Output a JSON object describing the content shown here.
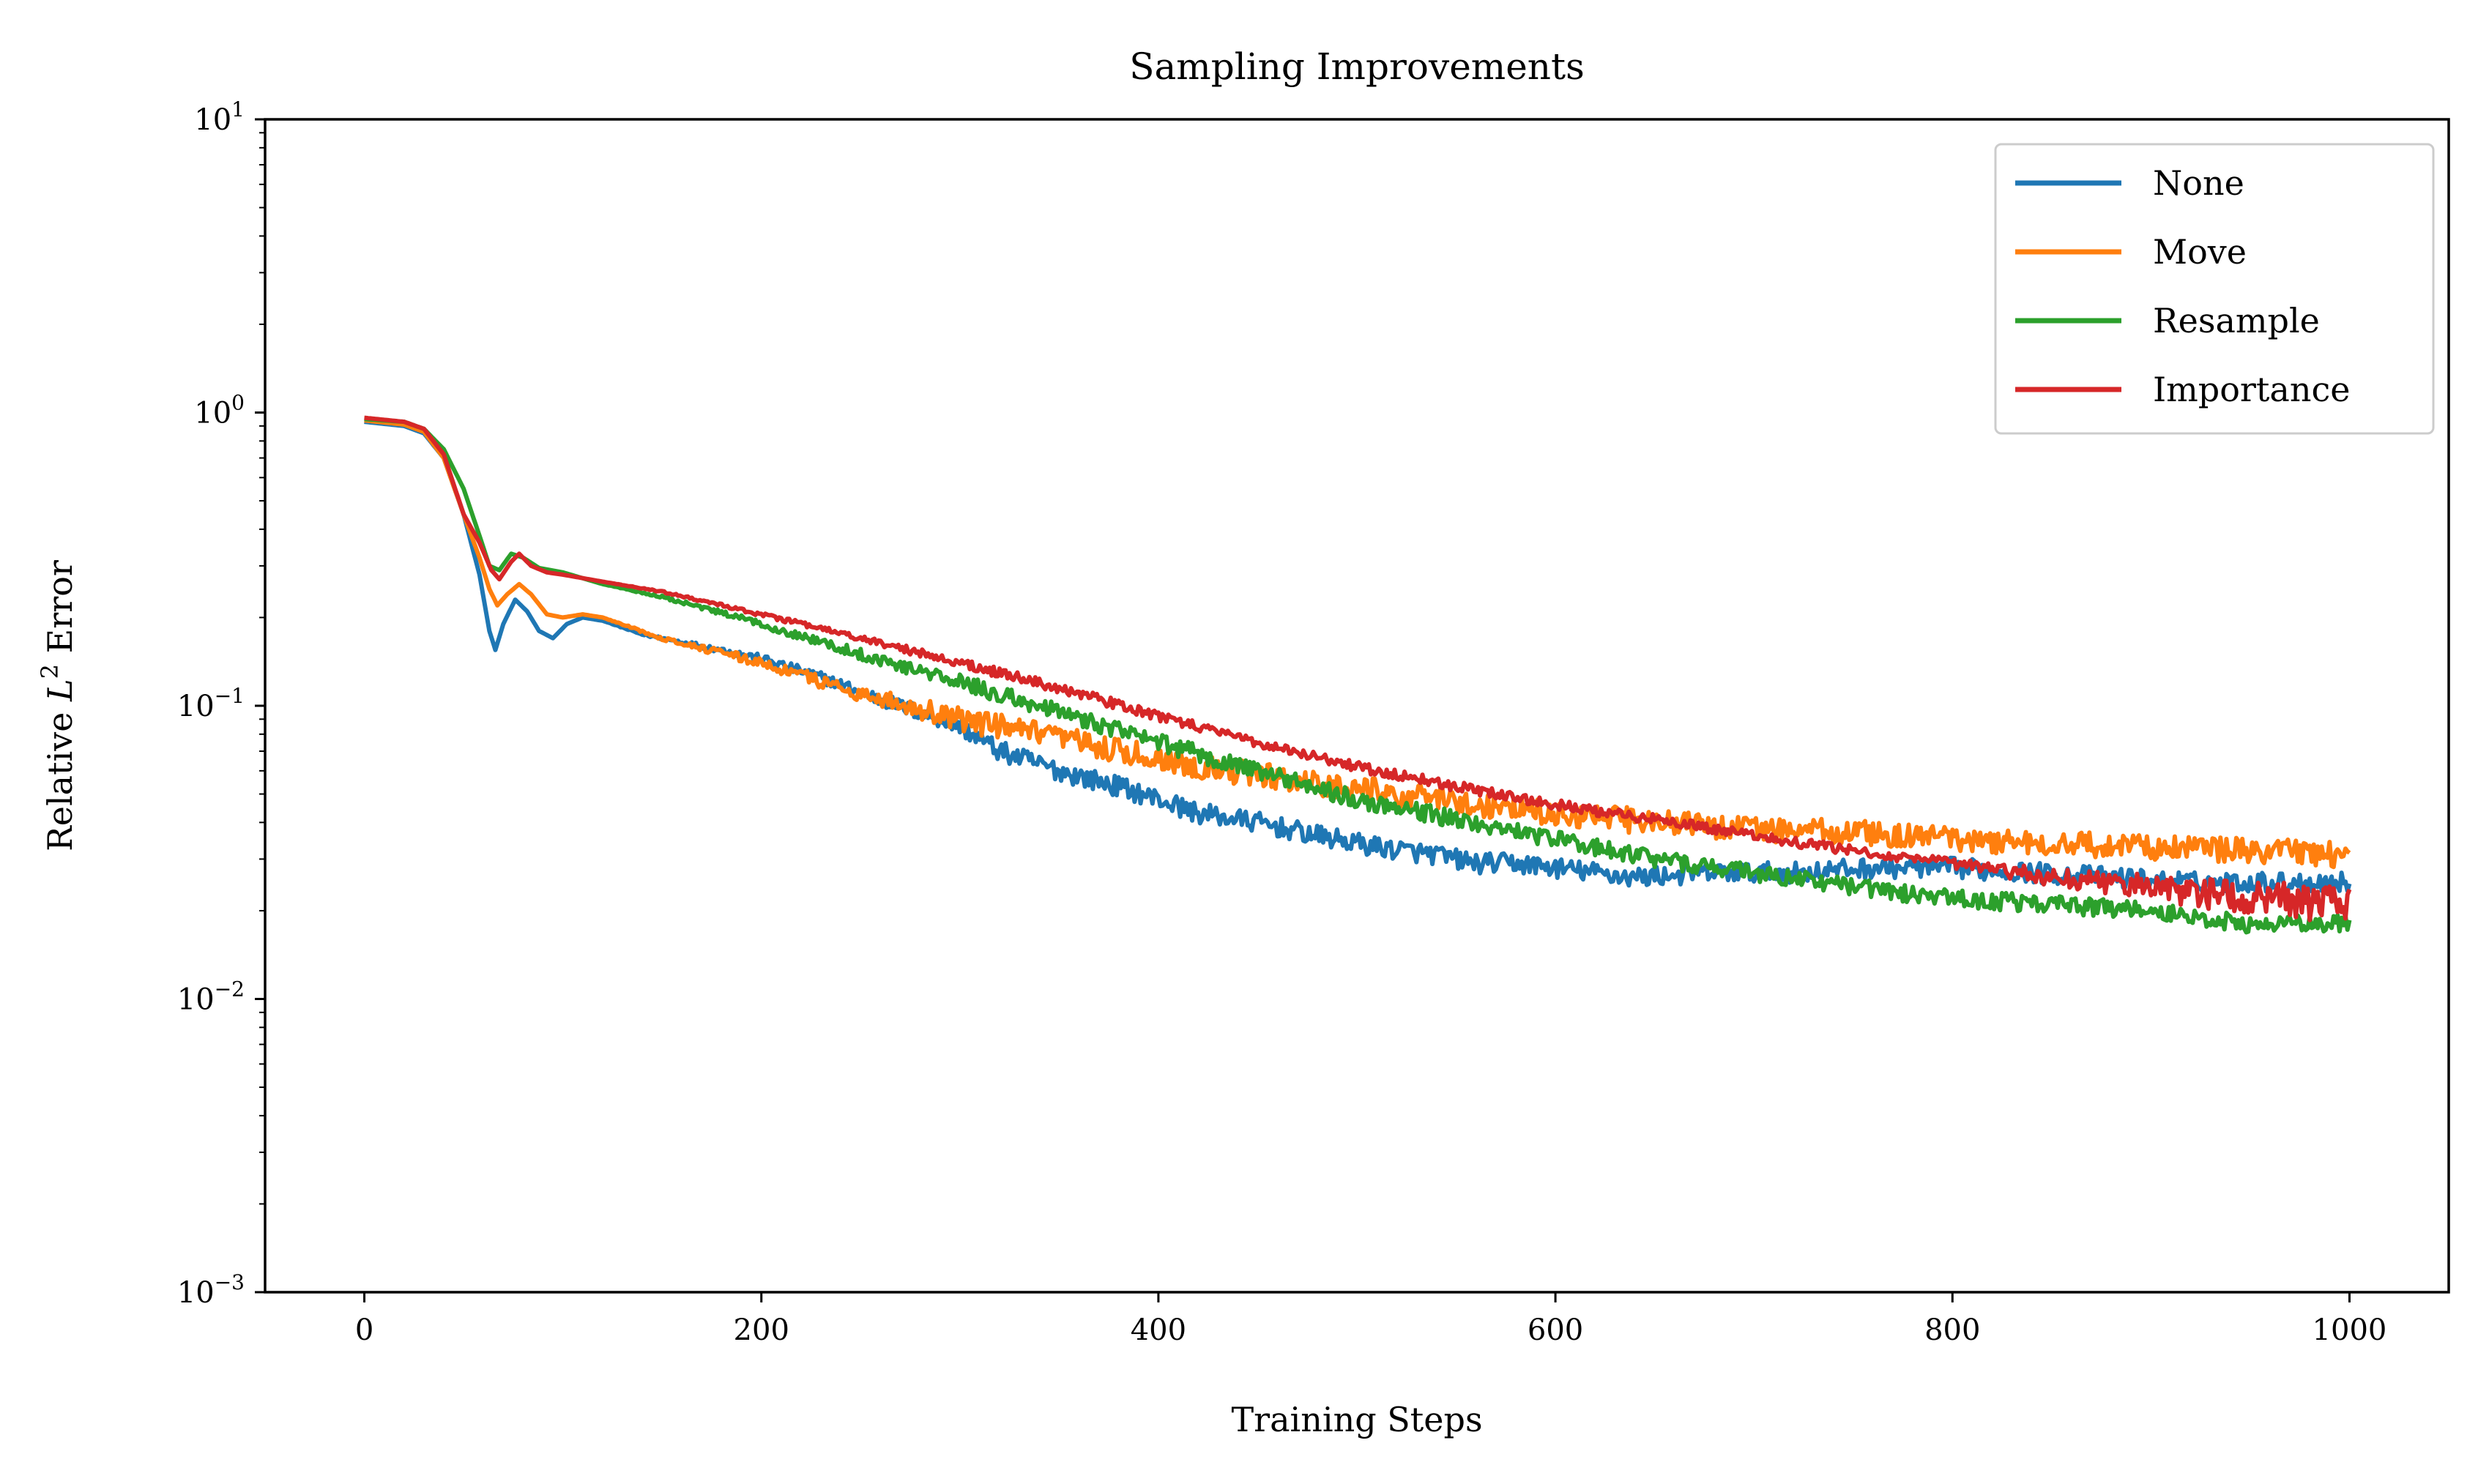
{
  "chart_data": {
    "type": "line",
    "title": "Sampling Improvements",
    "xlabel": "Training Steps",
    "ylabel_prefix": "Relative ",
    "ylabel_var": "L",
    "ylabel_sup": "2",
    "ylabel_suffix": " Error",
    "yscale": "log",
    "xlim": [
      -50,
      1050
    ],
    "ylim": [
      0.001,
      10
    ],
    "x_ticks": [
      0,
      200,
      400,
      600,
      800,
      1000
    ],
    "y_ticks": [
      {
        "value": 0.001,
        "base": "10",
        "exp": "−3"
      },
      {
        "value": 0.01,
        "base": "10",
        "exp": "−2"
      },
      {
        "value": 0.1,
        "base": "10",
        "exp": "−1"
      },
      {
        "value": 1,
        "base": "10",
        "exp": "0"
      },
      {
        "value": 10,
        "base": "10",
        "exp": "1"
      }
    ],
    "legend_position": "top-right",
    "series": [
      {
        "name": "None",
        "color": "#1f77b4",
        "noise": 0.08,
        "points": [
          [
            0,
            0.93
          ],
          [
            20,
            0.9
          ],
          [
            30,
            0.85
          ],
          [
            40,
            0.7
          ],
          [
            50,
            0.45
          ],
          [
            58,
            0.28
          ],
          [
            63,
            0.18
          ],
          [
            66,
            0.155
          ],
          [
            70,
            0.19
          ],
          [
            76,
            0.23
          ],
          [
            82,
            0.21
          ],
          [
            88,
            0.18
          ],
          [
            95,
            0.17
          ],
          [
            102,
            0.19
          ],
          [
            110,
            0.2
          ],
          [
            120,
            0.195
          ],
          [
            140,
            0.175
          ],
          [
            160,
            0.165
          ],
          [
            180,
            0.155
          ],
          [
            200,
            0.145
          ],
          [
            230,
            0.125
          ],
          [
            260,
            0.105
          ],
          [
            290,
            0.09
          ],
          [
            300,
            0.085
          ],
          [
            320,
            0.07
          ],
          [
            350,
            0.06
          ],
          [
            380,
            0.053
          ],
          [
            400,
            0.048
          ],
          [
            420,
            0.043
          ],
          [
            450,
            0.04
          ],
          [
            480,
            0.036
          ],
          [
            510,
            0.033
          ],
          [
            540,
            0.031
          ],
          [
            560,
            0.029
          ],
          [
            580,
            0.029
          ],
          [
            600,
            0.028
          ],
          [
            620,
            0.027
          ],
          [
            640,
            0.026
          ],
          [
            680,
            0.027
          ],
          [
            720,
            0.027
          ],
          [
            760,
            0.028
          ],
          [
            800,
            0.028
          ],
          [
            840,
            0.027
          ],
          [
            880,
            0.026
          ],
          [
            920,
            0.025
          ],
          [
            960,
            0.025
          ],
          [
            1000,
            0.025
          ]
        ]
      },
      {
        "name": "Move",
        "color": "#ff7f0e",
        "noise": 0.1,
        "points": [
          [
            0,
            0.94
          ],
          [
            20,
            0.91
          ],
          [
            30,
            0.86
          ],
          [
            40,
            0.7
          ],
          [
            50,
            0.45
          ],
          [
            58,
            0.32
          ],
          [
            63,
            0.25
          ],
          [
            67,
            0.22
          ],
          [
            72,
            0.24
          ],
          [
            78,
            0.26
          ],
          [
            84,
            0.24
          ],
          [
            92,
            0.205
          ],
          [
            100,
            0.2
          ],
          [
            110,
            0.205
          ],
          [
            120,
            0.2
          ],
          [
            150,
            0.17
          ],
          [
            200,
            0.14
          ],
          [
            250,
            0.11
          ],
          [
            300,
            0.09
          ],
          [
            350,
            0.077
          ],
          [
            400,
            0.066
          ],
          [
            450,
            0.058
          ],
          [
            500,
            0.052
          ],
          [
            550,
            0.047
          ],
          [
            600,
            0.043
          ],
          [
            650,
            0.04
          ],
          [
            700,
            0.038
          ],
          [
            750,
            0.037
          ],
          [
            800,
            0.035
          ],
          [
            850,
            0.034
          ],
          [
            900,
            0.033
          ],
          [
            950,
            0.032
          ],
          [
            1000,
            0.031
          ]
        ]
      },
      {
        "name": "Resample",
        "color": "#2ca02c",
        "noise": 0.07,
        "points": [
          [
            0,
            0.95
          ],
          [
            20,
            0.93
          ],
          [
            30,
            0.88
          ],
          [
            40,
            0.75
          ],
          [
            50,
            0.55
          ],
          [
            58,
            0.38
          ],
          [
            63,
            0.3
          ],
          [
            68,
            0.29
          ],
          [
            74,
            0.33
          ],
          [
            80,
            0.32
          ],
          [
            88,
            0.295
          ],
          [
            100,
            0.285
          ],
          [
            120,
            0.26
          ],
          [
            150,
            0.235
          ],
          [
            200,
            0.19
          ],
          [
            250,
            0.15
          ],
          [
            300,
            0.12
          ],
          [
            350,
            0.095
          ],
          [
            400,
            0.075
          ],
          [
            450,
            0.06
          ],
          [
            500,
            0.048
          ],
          [
            550,
            0.041
          ],
          [
            600,
            0.035
          ],
          [
            650,
            0.03
          ],
          [
            700,
            0.027
          ],
          [
            750,
            0.024
          ],
          [
            800,
            0.022
          ],
          [
            850,
            0.021
          ],
          [
            900,
            0.02
          ],
          [
            950,
            0.018
          ],
          [
            1000,
            0.018
          ]
        ]
      },
      {
        "name": "Importance",
        "color": "#d62728",
        "noise": 0.04,
        "noise_ramp_from": 800,
        "points": [
          [
            0,
            0.96
          ],
          [
            20,
            0.93
          ],
          [
            30,
            0.88
          ],
          [
            40,
            0.72
          ],
          [
            50,
            0.45
          ],
          [
            58,
            0.36
          ],
          [
            64,
            0.29
          ],
          [
            68,
            0.27
          ],
          [
            74,
            0.31
          ],
          [
            78,
            0.33
          ],
          [
            84,
            0.3
          ],
          [
            92,
            0.285
          ],
          [
            100,
            0.28
          ],
          [
            120,
            0.265
          ],
          [
            150,
            0.245
          ],
          [
            200,
            0.205
          ],
          [
            250,
            0.17
          ],
          [
            300,
            0.14
          ],
          [
            350,
            0.115
          ],
          [
            400,
            0.092
          ],
          [
            450,
            0.075
          ],
          [
            500,
            0.062
          ],
          [
            550,
            0.053
          ],
          [
            600,
            0.046
          ],
          [
            650,
            0.041
          ],
          [
            700,
            0.036
          ],
          [
            750,
            0.032
          ],
          [
            800,
            0.029
          ],
          [
            850,
            0.026
          ],
          [
            900,
            0.024
          ],
          [
            950,
            0.022
          ],
          [
            1000,
            0.021
          ]
        ]
      }
    ]
  }
}
